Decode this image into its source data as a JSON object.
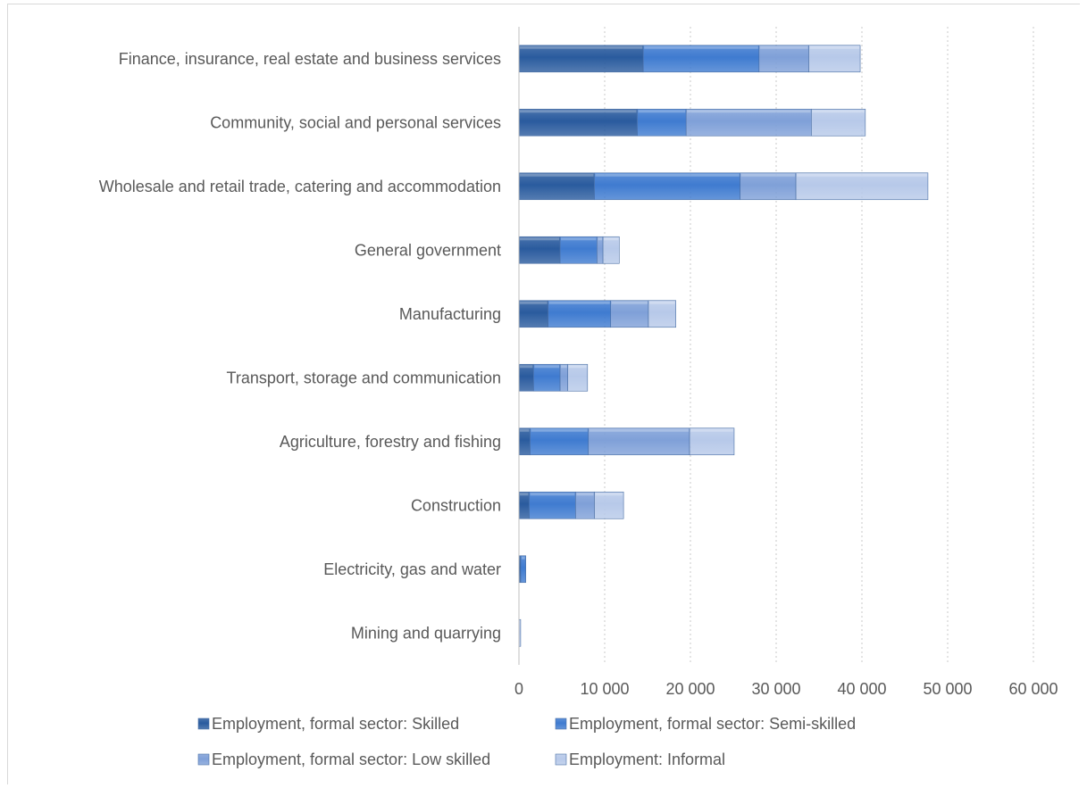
{
  "chart_data": {
    "type": "bar",
    "orientation": "horizontal",
    "stacked": true,
    "categories": [
      "Finance, insurance, real estate and business services",
      "Community, social and personal services",
      "Wholesale and retail trade, catering and accommodation",
      "General government",
      "Manufacturing",
      "Transport, storage and communication",
      "Agriculture, forestry and fishing",
      "Construction",
      "Electricity, gas and water",
      "Mining and quarrying"
    ],
    "series": [
      {
        "name": "Employment, formal sector: Skilled",
        "values": [
          14500,
          13800,
          8800,
          4800,
          3400,
          1700,
          1300,
          1200,
          200,
          0
        ],
        "color": "#2a5b9e"
      },
      {
        "name": "Employment, formal sector: Semi-skilled",
        "values": [
          13500,
          5700,
          17000,
          4300,
          7300,
          3100,
          6800,
          5400,
          600,
          0
        ],
        "color": "#3f7bd0"
      },
      {
        "name": "Employment, formal sector: Low skilled",
        "values": [
          5800,
          14600,
          6500,
          700,
          4400,
          900,
          11800,
          2200,
          0,
          0
        ],
        "color": "#7fa0d8"
      },
      {
        "name": "Employment: Informal",
        "values": [
          6000,
          6300,
          15400,
          1900,
          3200,
          2300,
          5200,
          3400,
          0,
          200
        ],
        "color": "#b7c9e9"
      }
    ],
    "xlim": [
      0,
      60000
    ],
    "xticks": [
      "0",
      "10 000",
      "20 000",
      "30 000",
      "40 000",
      "50 000",
      "60 000"
    ],
    "grid": "vertical dotted",
    "legend_position": "bottom"
  }
}
